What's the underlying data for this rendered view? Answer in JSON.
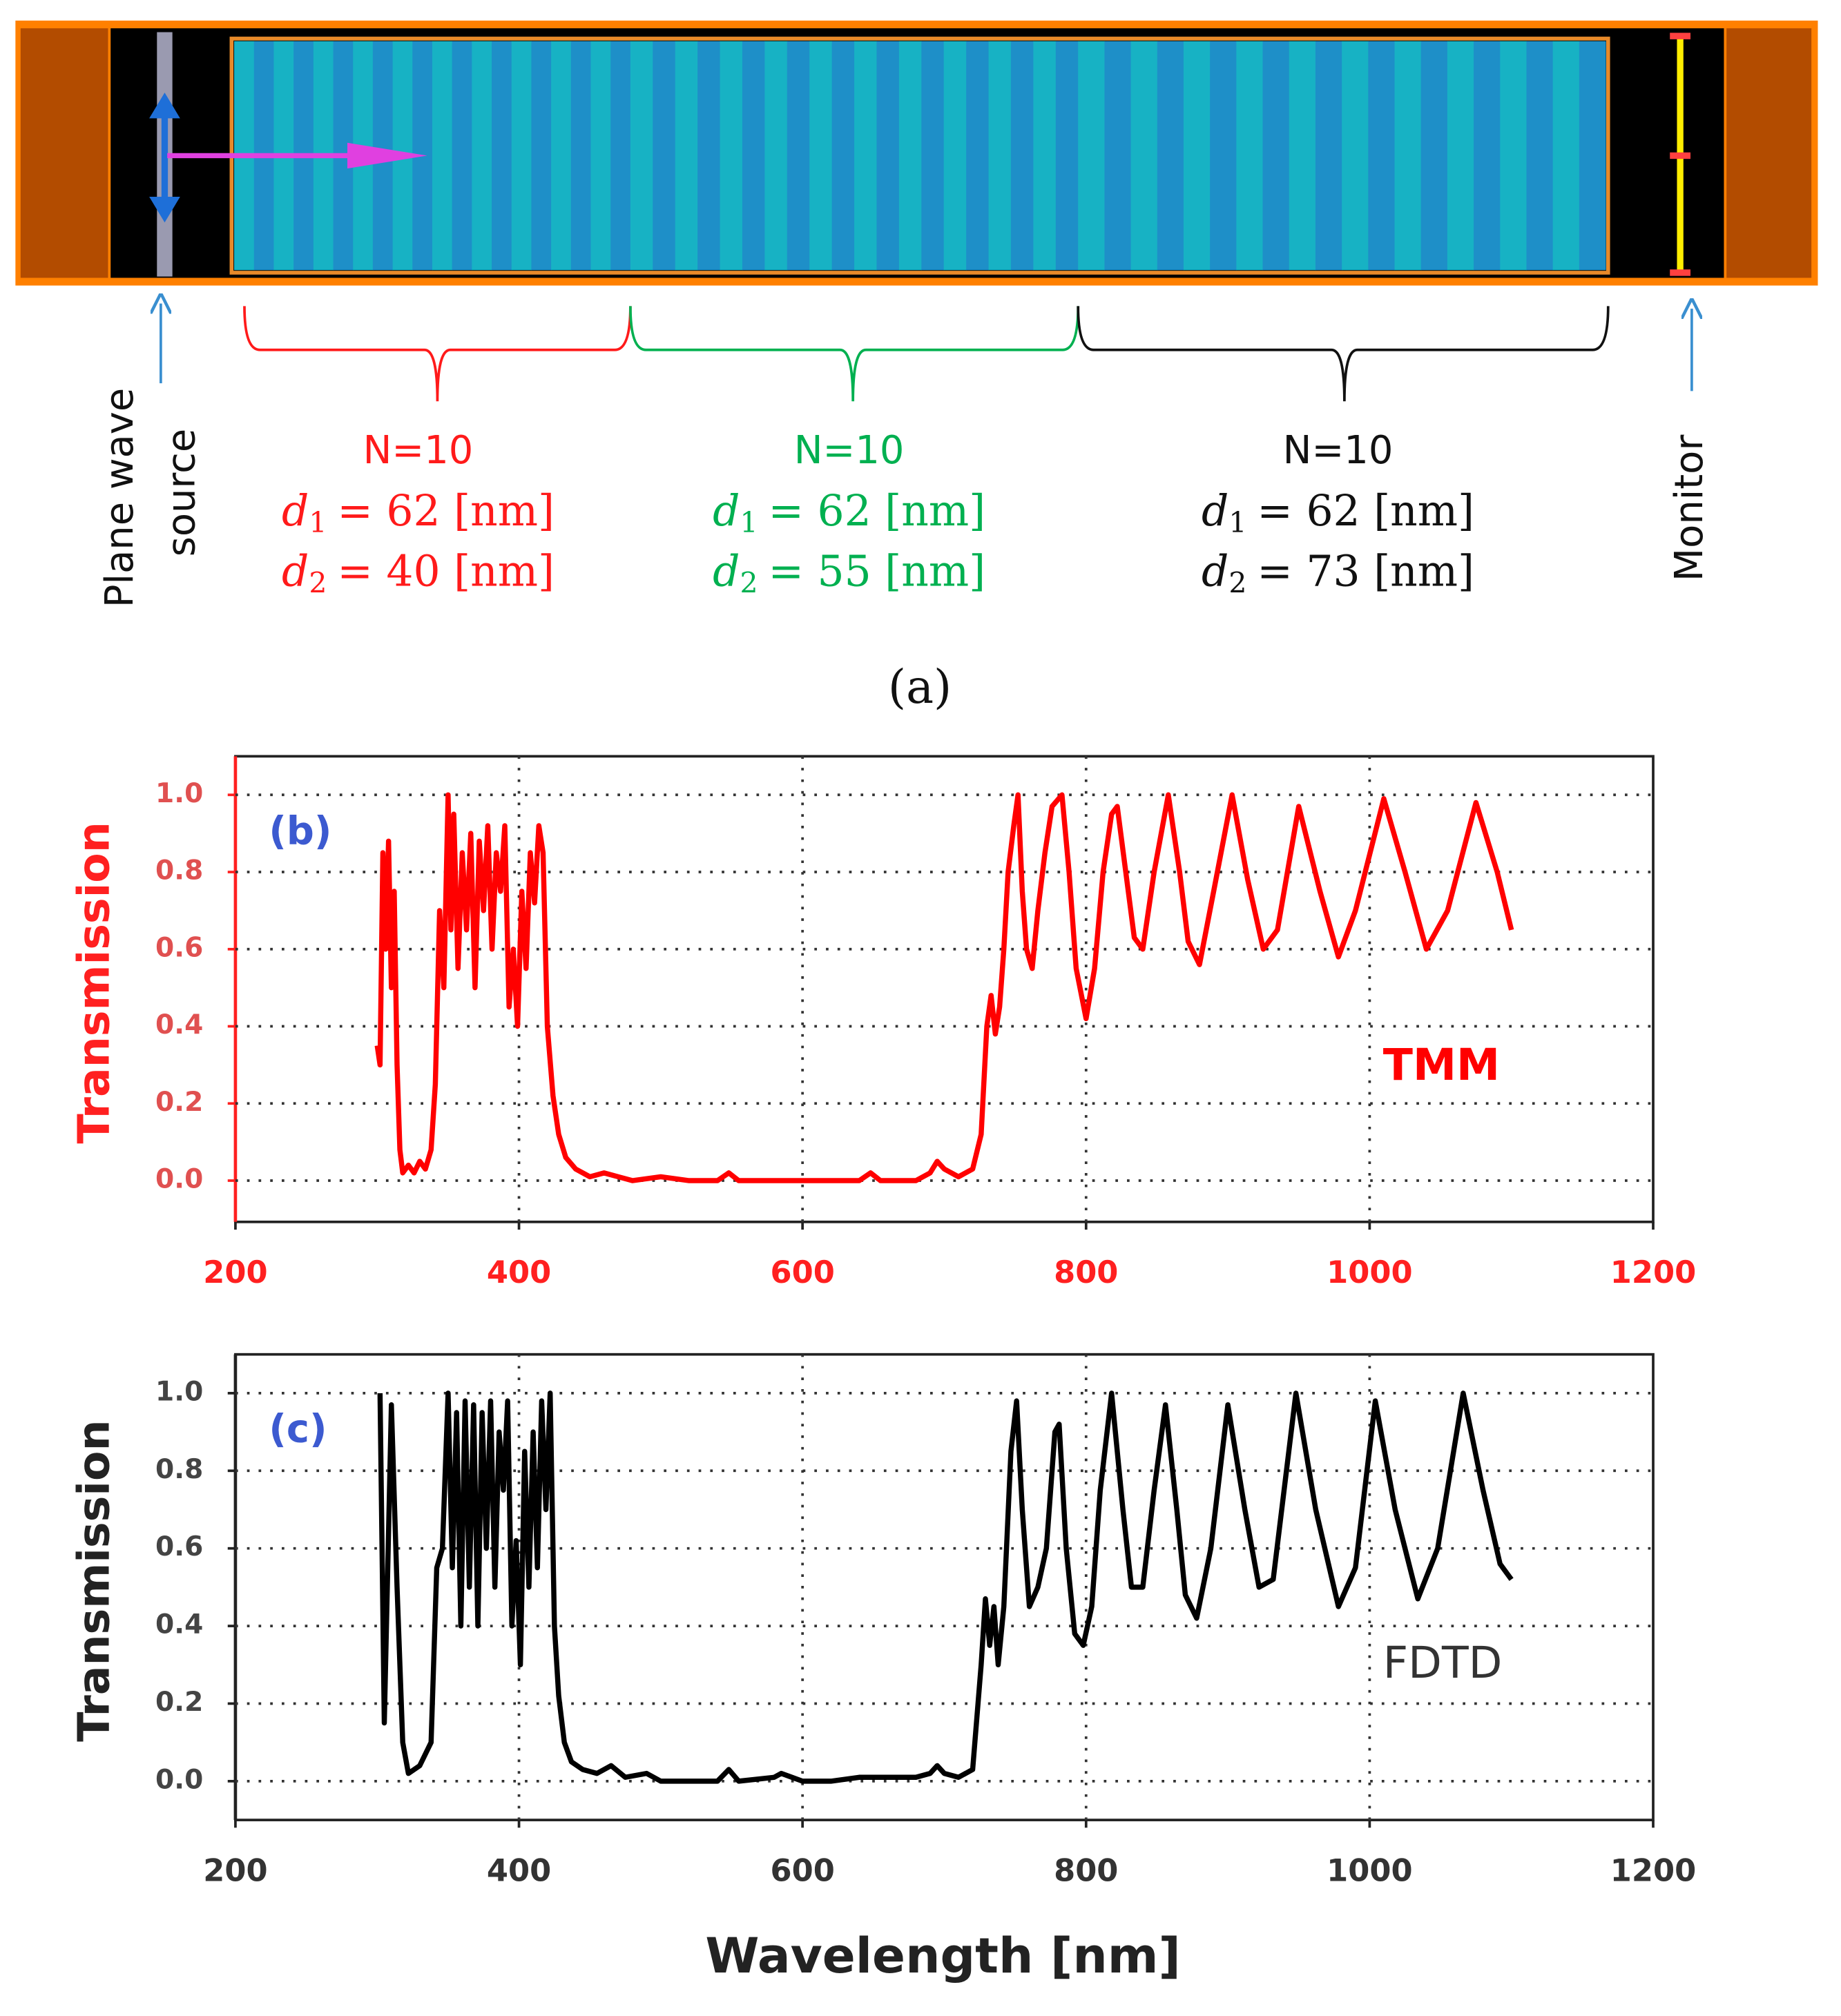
{
  "diagram": {
    "source_label": [
      "Plane wave",
      "source"
    ],
    "monitor_label": "Monitor",
    "sections": [
      {
        "n": "N=10",
        "color": "#ff1a1a",
        "d1_symbol": "d",
        "d1_index": "1",
        "d1_rest": "= 62 [nm]",
        "d2_symbol": "d",
        "d2_index": "2",
        "d2_rest": "= 40 [nm]"
      },
      {
        "n": "N=10",
        "color": "#00b050",
        "d1_symbol": "d",
        "d1_index": "1",
        "d1_rest": "= 62 [nm]",
        "d2_symbol": "d",
        "d2_index": "2",
        "d2_rest": "= 55 [nm]"
      },
      {
        "n": "N=10",
        "color": "#111111",
        "d1_symbol": "d",
        "d1_index": "1",
        "d1_rest": "= 62 [nm]",
        "d2_symbol": "d",
        "d2_index": "2",
        "d2_rest": "= 73 [nm]"
      }
    ],
    "caption": "(a)"
  },
  "chart_data": [
    {
      "type": "line",
      "panel_label": "(b)",
      "y_label": "Transmission",
      "label_color": "#ff2020",
      "tick_color": "#e05050",
      "xlim": [
        200,
        1200
      ],
      "xticks": [
        200,
        400,
        600,
        800,
        1000,
        1200
      ],
      "ylim": [
        -0.107,
        1.1
      ],
      "yticks": [
        {
          "value": 0,
          "label": "0.0"
        },
        0.2,
        0.4,
        0.6,
        0.8,
        {
          "value": 1,
          "label": "1.0"
        }
      ],
      "grid": true,
      "x": [
        300,
        302,
        304,
        306,
        308,
        310,
        312,
        314,
        316,
        318,
        322,
        326,
        330,
        334,
        338,
        341,
        344,
        347,
        350,
        352,
        354,
        357,
        360,
        363,
        366,
        369,
        372,
        375,
        378,
        381,
        384,
        387,
        390,
        393,
        396,
        399,
        402,
        405,
        408,
        411,
        414,
        417,
        420,
        424,
        428,
        433,
        440,
        450,
        460,
        470,
        480,
        500,
        520,
        540,
        548,
        555,
        580,
        600,
        620,
        640,
        648,
        655,
        680,
        690,
        695,
        700,
        710,
        720,
        726,
        730,
        733,
        736,
        739,
        742,
        745,
        749,
        752,
        755,
        758,
        762,
        766,
        771,
        776,
        783,
        788,
        793,
        800,
        806,
        812,
        818,
        822,
        828,
        834,
        840,
        848,
        858,
        866,
        872,
        880,
        890,
        903,
        914,
        925,
        935,
        950,
        965,
        978,
        990,
        1010,
        1025,
        1040,
        1055,
        1075,
        1090,
        1100
      ],
      "series": [
        {
          "name": "TMM",
          "color": "#ff0000",
          "values": [
            0.35,
            0.3,
            0.85,
            0.6,
            0.88,
            0.5,
            0.75,
            0.3,
            0.08,
            0.02,
            0.04,
            0.02,
            0.05,
            0.03,
            0.08,
            0.25,
            0.7,
            0.5,
            1.0,
            0.65,
            0.95,
            0.55,
            0.85,
            0.65,
            0.9,
            0.5,
            0.88,
            0.7,
            0.92,
            0.6,
            0.85,
            0.75,
            0.92,
            0.45,
            0.6,
            0.4,
            0.75,
            0.55,
            0.85,
            0.72,
            0.92,
            0.85,
            0.4,
            0.22,
            0.12,
            0.06,
            0.03,
            0.01,
            0.02,
            0.01,
            0.0,
            0.01,
            0.0,
            0.0,
            0.02,
            0.0,
            0.0,
            0.0,
            0.0,
            0.0,
            0.02,
            0.0,
            0.0,
            0.02,
            0.05,
            0.03,
            0.01,
            0.03,
            0.12,
            0.4,
            0.48,
            0.38,
            0.45,
            0.6,
            0.8,
            0.92,
            1.0,
            0.75,
            0.6,
            0.55,
            0.7,
            0.85,
            0.97,
            1.0,
            0.8,
            0.55,
            0.42,
            0.55,
            0.8,
            0.95,
            0.97,
            0.8,
            0.63,
            0.6,
            0.8,
            1.0,
            0.8,
            0.62,
            0.56,
            0.75,
            1.0,
            0.78,
            0.6,
            0.65,
            0.97,
            0.75,
            0.58,
            0.7,
            0.99,
            0.8,
            0.6,
            0.7,
            0.98,
            0.8,
            0.65
          ]
        }
      ]
    },
    {
      "type": "line",
      "panel_label": "(c)",
      "y_label": "Transmission",
      "x_label": "Wavelength [nm]",
      "label_color": "#222222",
      "tick_color": "#444444",
      "xlim": [
        200,
        1200
      ],
      "xticks": [
        200,
        400,
        600,
        800,
        1000,
        1200
      ],
      "ylim": [
        -0.1,
        1.1
      ],
      "yticks": [
        {
          "value": 0,
          "label": "0.0"
        },
        0.2,
        0.4,
        0.6,
        0.8,
        {
          "value": 1,
          "label": "1.0"
        }
      ],
      "grid": true,
      "x": [
        302,
        305,
        310,
        314,
        318,
        322,
        330,
        338,
        342,
        346,
        350,
        353,
        356,
        359,
        362,
        365,
        368,
        371,
        374,
        377,
        380,
        383,
        386,
        389,
        392,
        395,
        398,
        401,
        404,
        407,
        410,
        413,
        416,
        419,
        422,
        425,
        428,
        432,
        437,
        445,
        455,
        465,
        475,
        490,
        500,
        520,
        540,
        548,
        555,
        580,
        585,
        600,
        620,
        640,
        680,
        690,
        695,
        700,
        710,
        720,
        726,
        729,
        732,
        735,
        738,
        742,
        747,
        751,
        755,
        760,
        766,
        772,
        778,
        781,
        786,
        792,
        798,
        804,
        810,
        818,
        826,
        832,
        840,
        848,
        856,
        864,
        870,
        878,
        888,
        900,
        912,
        922,
        932,
        948,
        962,
        978,
        990,
        1004,
        1018,
        1034,
        1048,
        1066,
        1080,
        1092,
        1100
      ],
      "series": [
        {
          "name": "FDTD",
          "color": "#000000",
          "values": [
            1.0,
            0.15,
            0.97,
            0.5,
            0.1,
            0.02,
            0.04,
            0.1,
            0.55,
            0.6,
            1.0,
            0.55,
            0.95,
            0.4,
            0.98,
            0.5,
            0.97,
            0.4,
            0.95,
            0.6,
            0.98,
            0.5,
            0.9,
            0.75,
            0.98,
            0.4,
            0.62,
            0.3,
            0.85,
            0.5,
            0.9,
            0.55,
            0.98,
            0.7,
            1.0,
            0.4,
            0.22,
            0.1,
            0.05,
            0.03,
            0.02,
            0.04,
            0.01,
            0.02,
            0.0,
            0.0,
            0.0,
            0.03,
            0.0,
            0.01,
            0.02,
            0.0,
            0.0,
            0.01,
            0.01,
            0.02,
            0.04,
            0.02,
            0.01,
            0.03,
            0.3,
            0.47,
            0.35,
            0.45,
            0.3,
            0.45,
            0.85,
            0.98,
            0.7,
            0.45,
            0.5,
            0.6,
            0.9,
            0.92,
            0.6,
            0.38,
            0.35,
            0.45,
            0.75,
            1.0,
            0.7,
            0.5,
            0.5,
            0.75,
            0.97,
            0.7,
            0.48,
            0.42,
            0.6,
            0.97,
            0.7,
            0.5,
            0.52,
            1.0,
            0.7,
            0.45,
            0.55,
            0.98,
            0.7,
            0.47,
            0.6,
            1.0,
            0.75,
            0.56,
            0.52
          ]
        }
      ]
    }
  ]
}
